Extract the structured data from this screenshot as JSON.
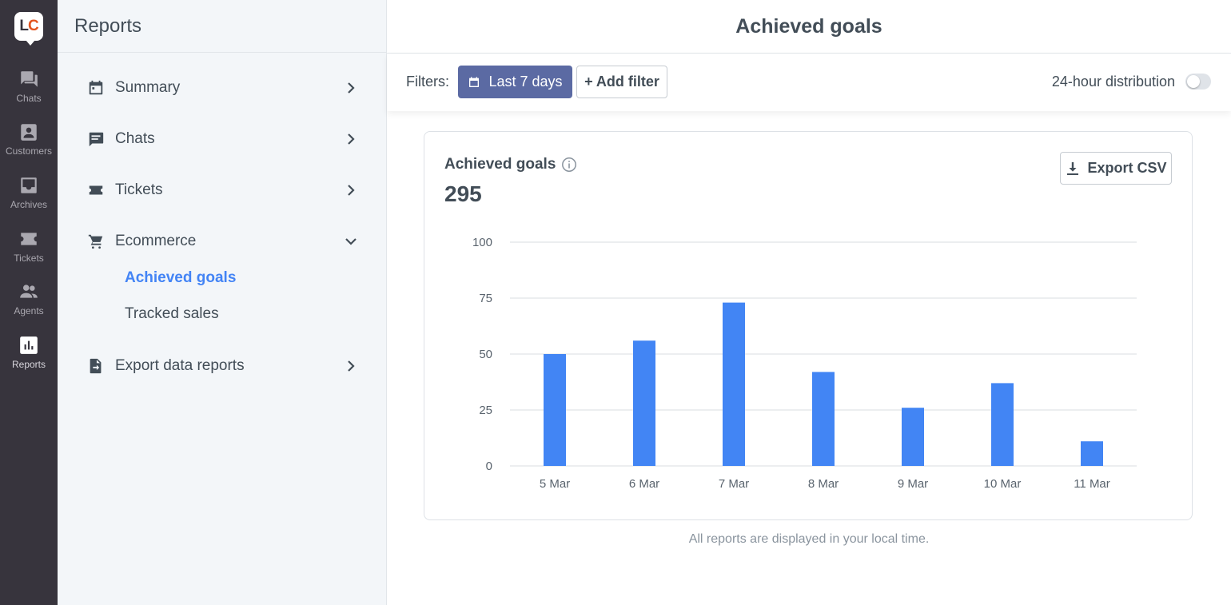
{
  "rail": {
    "logo": {
      "l": "L",
      "c": "C"
    },
    "items": [
      {
        "label": "Chats",
        "icon": "chat-bubbles-icon"
      },
      {
        "label": "Customers",
        "icon": "customers-icon"
      },
      {
        "label": "Archives",
        "icon": "archive-inbox-icon"
      },
      {
        "label": "Tickets",
        "icon": "ticket-icon"
      },
      {
        "label": "Agents",
        "icon": "agents-icon"
      },
      {
        "label": "Reports",
        "icon": "reports-chart-icon"
      }
    ]
  },
  "sidebar": {
    "title": "Reports",
    "items": [
      {
        "label": "Summary",
        "icon": "calendar-icon"
      },
      {
        "label": "Chats",
        "icon": "chat-icon"
      },
      {
        "label": "Tickets",
        "icon": "ticket-icon"
      },
      {
        "label": "Ecommerce",
        "icon": "cart-icon"
      },
      {
        "label": "Export data reports",
        "icon": "export-file-icon"
      }
    ],
    "ecommerce_sub": [
      {
        "label": "Achieved goals",
        "active": true
      },
      {
        "label": "Tracked sales",
        "active": false
      }
    ]
  },
  "header": {
    "title": "Achieved goals"
  },
  "filters": {
    "label": "Filters:",
    "date_range": "Last 7 days",
    "add_filter": "+ Add filter",
    "distribution_label": "24-hour distribution",
    "distribution_enabled": false
  },
  "card": {
    "title": "Achieved goals",
    "total": "295",
    "export_label": "Export CSV"
  },
  "footnote": "All reports are displayed in your local time.",
  "colors": {
    "accent": "#4384f5",
    "bar": "#4285f4",
    "date_button": "#5b6aa3",
    "rail": "#37343d"
  },
  "chart_data": {
    "type": "bar",
    "categories": [
      "5 Mar",
      "6 Mar",
      "7 Mar",
      "8 Mar",
      "9 Mar",
      "10 Mar",
      "11 Mar"
    ],
    "values": [
      50,
      56,
      73,
      42,
      26,
      37,
      11
    ],
    "ylim": [
      0,
      100
    ],
    "yticks": [
      0,
      25,
      50,
      75,
      100
    ],
    "grid": true,
    "legend": "none"
  }
}
